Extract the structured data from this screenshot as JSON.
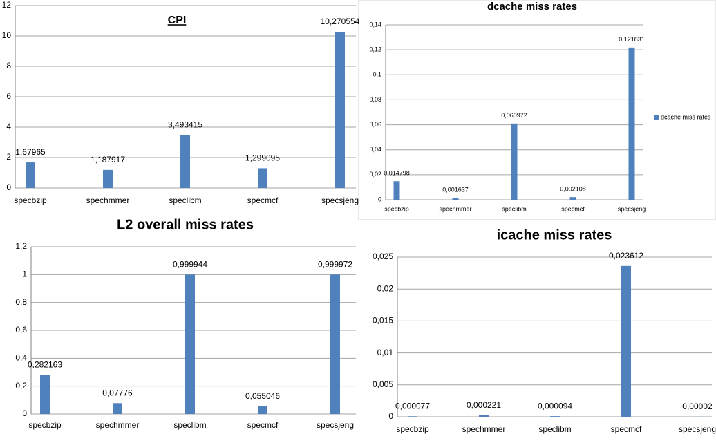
{
  "chart_data": [
    {
      "type": "bar",
      "title": "CPI",
      "categories": [
        "specbzip",
        "spechmmer",
        "speclibm",
        "specmcf",
        "specsjeng"
      ],
      "values": [
        1.67965,
        1.187917,
        3.493415,
        1.299095,
        10.270554
      ],
      "value_labels": [
        "1,67965",
        "1,187917",
        "3,493415",
        "1,299095",
        "10,270554"
      ],
      "color": "#4f81bd",
      "ylim": [
        0,
        12
      ],
      "yticks": [
        0,
        2,
        4,
        6,
        8,
        10,
        12
      ],
      "grid": true
    },
    {
      "type": "bar",
      "title": "dcache miss rates",
      "categories": [
        "specbzip",
        "spechmmer",
        "speclibm",
        "specmcf",
        "specsjeng"
      ],
      "series": [
        {
          "name": "dcache miss rates",
          "color": "#4f81bd",
          "values": [
            0.014798,
            0.001637,
            0.060972,
            0.002108,
            0.121831
          ],
          "value_labels": [
            "0,014798",
            "0,001637",
            "0,060972",
            "0,002108",
            "0,121831"
          ]
        }
      ],
      "ylim": [
        0,
        0.14
      ],
      "yticks": [
        0,
        {
          "value": 0.02,
          "label": "0,02"
        },
        {
          "value": 0.04,
          "label": "0,04"
        },
        {
          "value": 0.06,
          "label": "0,06"
        },
        {
          "value": 0.08,
          "label": "0,08"
        },
        {
          "value": 0.1,
          "label": "0,1"
        },
        {
          "value": 0.12,
          "label": "0,12"
        },
        {
          "value": 0.14,
          "label": "0,14"
        }
      ],
      "grid": true,
      "legend": "right"
    },
    {
      "type": "bar",
      "title": "L2 overall miss rates",
      "categories": [
        "specbzip",
        "spechmmer",
        "speclibm",
        "specmcf",
        "specsjeng"
      ],
      "values": [
        0.282163,
        0.07776,
        0.999944,
        0.055046,
        0.999972
      ],
      "value_labels": [
        "0,282163",
        "0,07776",
        "0,999944",
        "0,055046",
        "0,999972"
      ],
      "color": "#4f81bd",
      "ylim": [
        0,
        1.2
      ],
      "yticks": [
        0,
        {
          "value": 0.2,
          "label": "0,2"
        },
        {
          "value": 0.4,
          "label": "0,4"
        },
        {
          "value": 0.6,
          "label": "0,6"
        },
        {
          "value": 0.8,
          "label": "0,8"
        },
        1,
        {
          "value": 1.2,
          "label": "1,2"
        }
      ],
      "grid": true
    },
    {
      "type": "bar",
      "title": "icache miss rates",
      "categories": [
        "specbzip",
        "spechmmer",
        "speclibm",
        "specmcf",
        "specsjeng"
      ],
      "values": [
        7.7e-05,
        0.000221,
        9.4e-05,
        0.023612,
        2e-05
      ],
      "value_labels": [
        "0,000077",
        "0,000221",
        "0,000094",
        "0,023612",
        "0,00002"
      ],
      "color": "#4f81bd",
      "ylim": [
        0,
        0.025
      ],
      "yticks": [
        0,
        {
          "value": 0.005,
          "label": "0,005"
        },
        {
          "value": 0.01,
          "label": "0,01"
        },
        {
          "value": 0.015,
          "label": "0,015"
        },
        {
          "value": 0.02,
          "label": "0,02"
        },
        {
          "value": 0.025,
          "label": "0,025"
        }
      ],
      "grid": true
    }
  ]
}
